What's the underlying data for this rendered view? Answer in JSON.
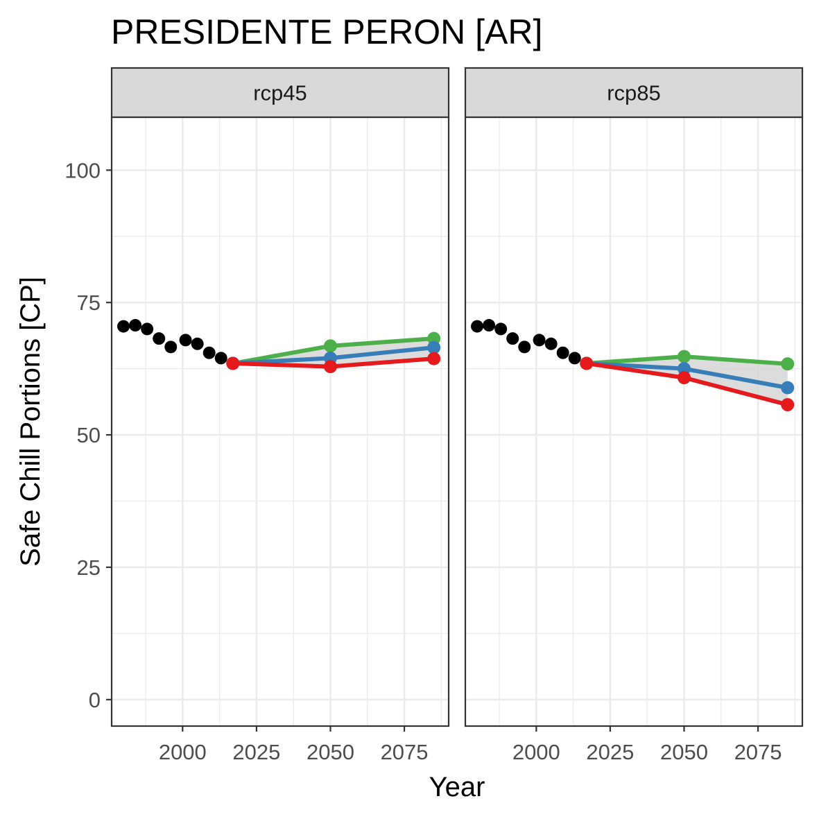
{
  "chart_data": {
    "type": "line",
    "title": "PRESIDENTE PERON [AR]",
    "xlabel": "Year",
    "ylabel": "Safe Chill Portions [CP]",
    "xlim": [
      1976,
      2090
    ],
    "ylim": [
      -5,
      110
    ],
    "x_ticks": [
      2000,
      2025,
      2050,
      2075
    ],
    "x_tick_labels": [
      "2000",
      "2025",
      "2050",
      "2075"
    ],
    "y_ticks": [
      0,
      25,
      50,
      75,
      100
    ],
    "y_tick_labels": [
      "0",
      "25",
      "50",
      "75",
      "100"
    ],
    "grid": true,
    "legend": "none",
    "colors": {
      "historic": "#000000",
      "low": "#e41a1c",
      "mid": "#377eb8",
      "high": "#4daf4a",
      "ribbon": "#d3d3d3"
    },
    "historic": {
      "x": [
        1980,
        1984,
        1988,
        1992,
        1996,
        2001,
        2005,
        2009,
        2013,
        2017
      ],
      "y": [
        70.5,
        70.7,
        70.0,
        68.2,
        66.6,
        67.9,
        67.2,
        65.5,
        64.5,
        63.5
      ]
    },
    "panels": [
      {
        "label": "rcp45",
        "x": [
          2017,
          2050,
          2085
        ],
        "series": [
          {
            "key": "high",
            "values": [
              63.5,
              66.8,
              68.2
            ]
          },
          {
            "key": "mid",
            "values": [
              63.5,
              64.5,
              66.5
            ]
          },
          {
            "key": "low",
            "values": [
              63.5,
              62.9,
              64.4
            ]
          }
        ]
      },
      {
        "label": "rcp85",
        "x": [
          2017,
          2050,
          2085
        ],
        "series": [
          {
            "key": "high",
            "values": [
              63.5,
              64.8,
              63.4
            ]
          },
          {
            "key": "mid",
            "values": [
              63.5,
              62.5,
              58.9
            ]
          },
          {
            "key": "low",
            "values": [
              63.5,
              60.8,
              55.7
            ]
          }
        ]
      }
    ]
  }
}
